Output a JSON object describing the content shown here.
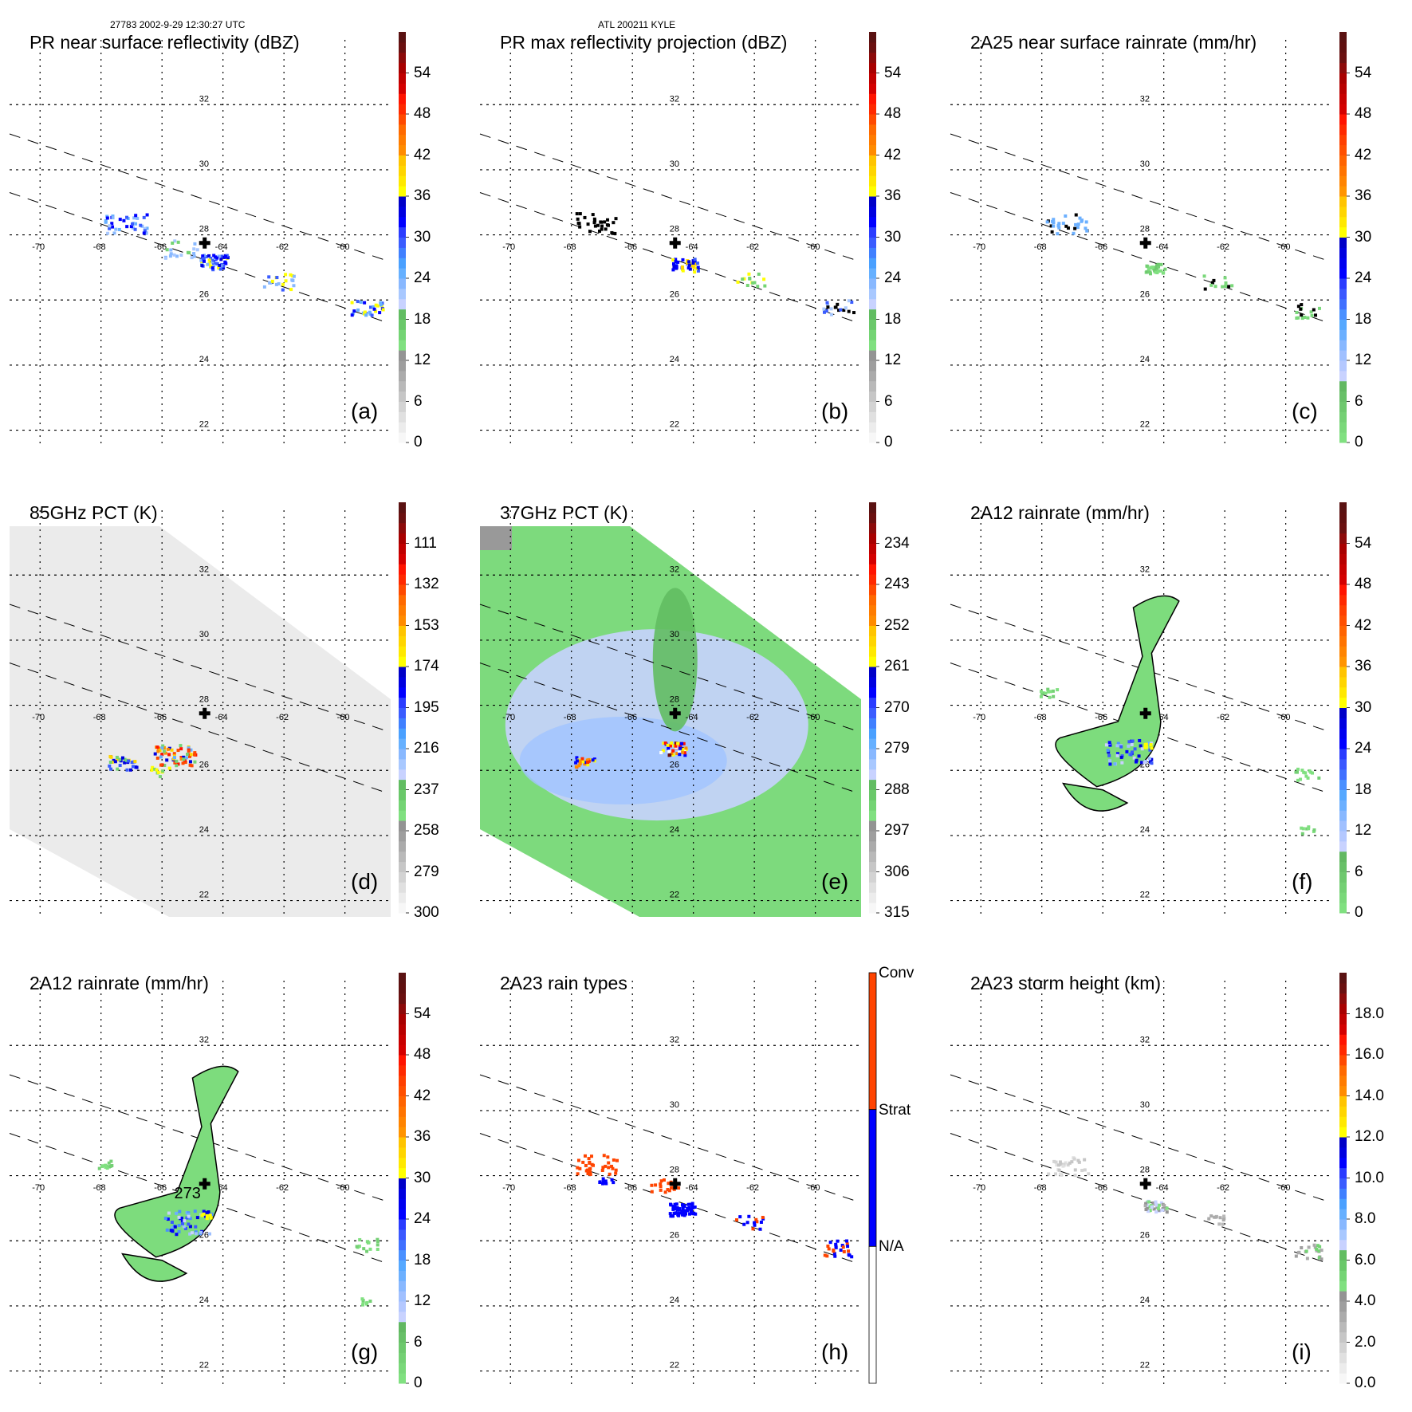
{
  "header": {
    "orbit_time": "27783 2002-9-29 12:30:27 UTC",
    "storm_id": "ATL 200211 KYLE"
  },
  "map": {
    "lon_ticks": [
      "-70",
      "-68",
      "-66",
      "-64",
      "-62",
      "-60"
    ],
    "lat_ticks": [
      "32",
      "30",
      "28",
      "26",
      "24",
      "22"
    ],
    "lon_range": [
      -71,
      -58.5
    ],
    "lat_range": [
      21.5,
      33.5
    ],
    "storm_center": {
      "lon": -64.6,
      "lat": 27.75,
      "symbol": "plus"
    }
  },
  "colors": {
    "scale": [
      "#f7f7f7",
      "#ececec",
      "#e0e0e0",
      "#d3d3d3",
      "#c6c6c6",
      "#b9b9b9",
      "#ababab",
      "#9e9e9e",
      "#939393",
      "#80e080",
      "#74d474",
      "#6ac86a",
      "#62bd62",
      "#c8d2ff",
      "#a8c8ff",
      "#88b8ff",
      "#66b0ff",
      "#4aa0ff",
      "#4080ff",
      "#3a5cff",
      "#2a3cff",
      "#0000ff",
      "#0000e0",
      "#0000c8",
      "#ffff00",
      "#ffe800",
      "#ffd500",
      "#ffc400",
      "#ff8c00",
      "#ff7c00",
      "#ff6a00",
      "#ff4a00",
      "#ff2a00",
      "#ff1400",
      "#d40000",
      "#c00000",
      "#a80000",
      "#8c0a0a",
      "#6a1010",
      "#5a1212"
    ],
    "raintype": {
      "conv": "#ff4400",
      "strat": "#0000ff",
      "na": "#ffffff"
    }
  },
  "chart_data": [
    {
      "id": "a",
      "type": "heatmap",
      "title": "PR near surface reflectivity (dBZ)",
      "panel_label": "(a)",
      "colorbar": {
        "ticks": [
          "54",
          "48",
          "42",
          "36",
          "30",
          "24",
          "18",
          "12",
          "6",
          "0"
        ],
        "range": [
          0,
          60
        ],
        "reversed": false
      },
      "background": "none",
      "contour": false
    },
    {
      "id": "b",
      "type": "heatmap",
      "title": "PR max reflectivity projection (dBZ)",
      "panel_label": "(b)",
      "colorbar": {
        "ticks": [
          "54",
          "48",
          "42",
          "36",
          "30",
          "24",
          "18",
          "12",
          "6",
          "0"
        ],
        "range": [
          0,
          60
        ],
        "reversed": false
      },
      "background": "none",
      "contour": true
    },
    {
      "id": "c",
      "type": "heatmap",
      "title": "2A25 near surface rainrate (mm/hr)",
      "panel_label": "(c)",
      "colorbar": {
        "ticks": [
          "54",
          "48",
          "42",
          "36",
          "30",
          "24",
          "18",
          "12",
          "6",
          "0"
        ],
        "range": [
          0,
          60
        ],
        "reversed": false,
        "palette": "rain"
      },
      "background": "none",
      "contour": true
    },
    {
      "id": "d",
      "type": "heatmap",
      "title": "85GHz PCT (K)",
      "panel_label": "(d)",
      "colorbar": {
        "ticks": [
          "111",
          "132",
          "153",
          "174",
          "195",
          "216",
          "237",
          "258",
          "279",
          "300"
        ],
        "range": [
          90,
          300
        ],
        "reversed": true
      },
      "background": "gray-swath",
      "contour": true
    },
    {
      "id": "e",
      "type": "heatmap",
      "title": "37GHz PCT (K)",
      "panel_label": "(e)",
      "colorbar": {
        "ticks": [
          "234",
          "243",
          "252",
          "261",
          "270",
          "279",
          "288",
          "297",
          "306",
          "315"
        ],
        "range": [
          225,
          315
        ],
        "reversed": true
      },
      "background": "green-swath",
      "contour": false
    },
    {
      "id": "f",
      "type": "heatmap",
      "title": "2A12 rainrate (mm/hr)",
      "panel_label": "(f)",
      "colorbar": {
        "ticks": [
          "54",
          "48",
          "42",
          "36",
          "30",
          "24",
          "18",
          "12",
          "6",
          "0"
        ],
        "range": [
          0,
          60
        ],
        "reversed": false,
        "palette": "rain"
      },
      "background": "none",
      "contour": true
    },
    {
      "id": "g",
      "type": "heatmap",
      "title": "2A12 rainrate (mm/hr)",
      "panel_label": "(g)",
      "colorbar": {
        "ticks": [
          "54",
          "48",
          "42",
          "36",
          "30",
          "24",
          "18",
          "12",
          "6",
          "0"
        ],
        "range": [
          0,
          60
        ],
        "reversed": false,
        "palette": "rain"
      },
      "background": "none",
      "contour": true,
      "contour_label": "273"
    },
    {
      "id": "h",
      "type": "heatmap",
      "title": "2A23 rain types",
      "panel_label": "(h)",
      "colorbar": {
        "categories": [
          "Conv",
          "Strat",
          "N/A"
        ]
      },
      "background": "none",
      "contour": false
    },
    {
      "id": "i",
      "type": "heatmap",
      "title": "2A23 storm height (km)",
      "panel_label": "(i)",
      "colorbar": {
        "ticks": [
          "18.0",
          "16.0",
          "14.0",
          "12.0",
          "10.0",
          "8.0",
          "6.0",
          "4.0",
          "2.0",
          "0.0"
        ],
        "range": [
          0,
          20
        ],
        "reversed": false
      },
      "background": "none",
      "contour": false
    }
  ]
}
